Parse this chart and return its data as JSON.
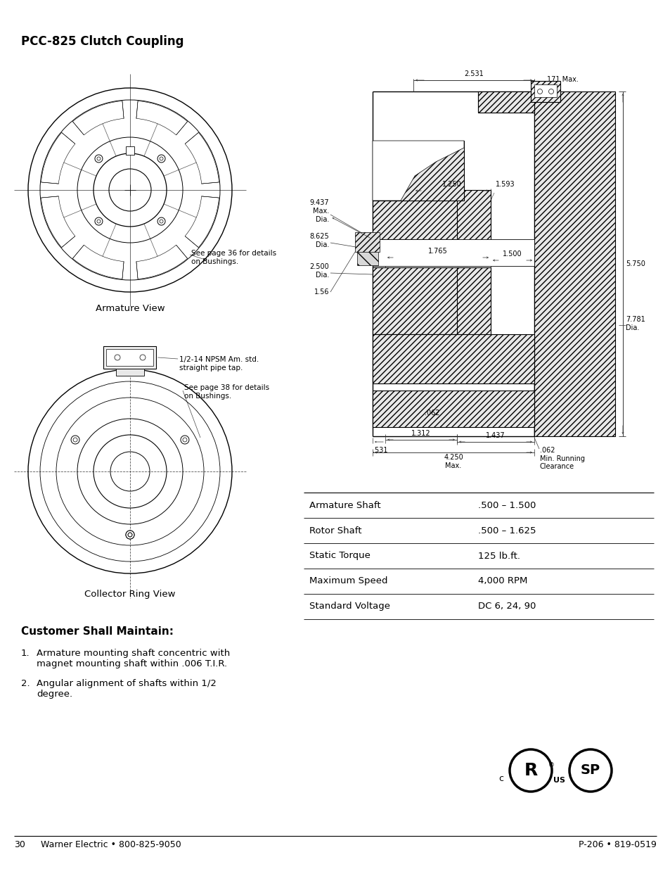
{
  "title": "PCC-825 Clutch Coupling",
  "background_color": "#ffffff",
  "page_number": "30",
  "footer_left": "Warner Electric • 800-825-9050",
  "footer_right": "P-206 • 819-0519",
  "table_rows": [
    [
      "Armature Shaft",
      ".500 – 1.500"
    ],
    [
      "Rotor Shaft",
      ".500 – 1.625"
    ],
    [
      "Static Torque",
      "125 lb.ft."
    ],
    [
      "Maximum Speed",
      "4,000 RPM"
    ],
    [
      "Standard Voltage",
      "DC 6, 24, 90"
    ]
  ],
  "customer_title": "Customer Shall Maintain:",
  "customer_items": [
    "Armature mounting shaft concentric with\nmagnet mounting shaft within .006 T.I.R.",
    "Angular alignment of shafts within 1/2\ndegree."
  ],
  "armature_view_label": "Armature View",
  "collector_ring_label": "Collector Ring View",
  "armature_note": "See page 36 for details\non Bushings.",
  "collector_note": "See page 38 for details\non Bushings.",
  "collector_note2": "1/2-14 NPSM Am. std.\nstraight pipe tap."
}
